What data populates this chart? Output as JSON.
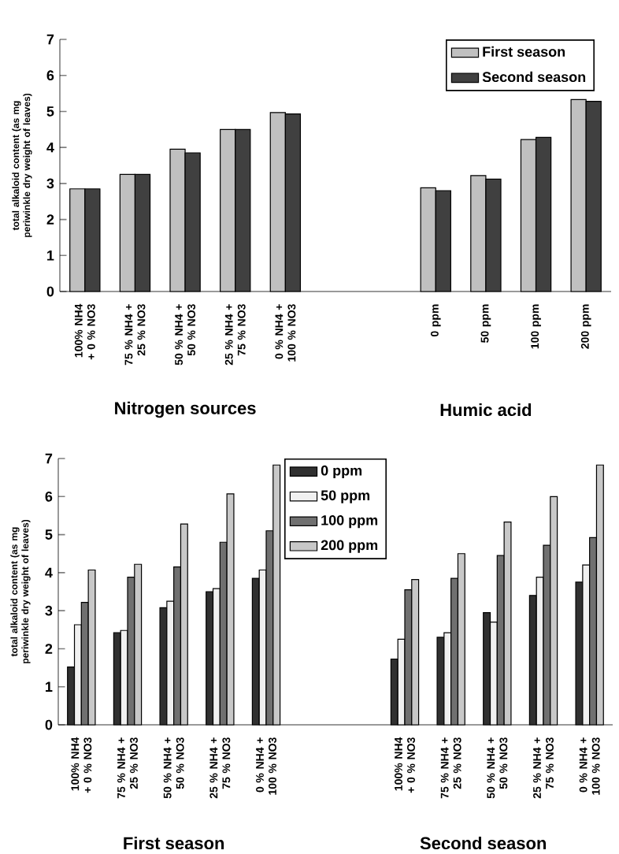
{
  "chart_data": [
    {
      "type": "bar",
      "ylabel": "total alkaloid content (as mg periwinkle dry weight of leaves)",
      "categories": [
        "100% NH4 + 0 % NO3",
        "75 % NH4 + 25 % NO3",
        "50 % NH4 + 50 % NO3",
        "25 % NH4 + 75 % NO3",
        "0 % NH4 + 100 % NO3",
        null,
        null,
        "0 ppm",
        "50 ppm",
        "100 ppm",
        "200 ppm"
      ],
      "series": [
        {
          "name": "First season",
          "color": "#c0c0c0",
          "values": [
            2.85,
            3.25,
            3.95,
            4.5,
            4.97,
            null,
            null,
            2.88,
            3.22,
            4.22,
            5.33
          ]
        },
        {
          "name": "Second season",
          "color": "#404040",
          "values": [
            2.85,
            3.25,
            3.85,
            4.5,
            4.93,
            null,
            null,
            2.8,
            3.12,
            4.28,
            5.28
          ]
        }
      ],
      "ylim": [
        0,
        7
      ],
      "yticks": [
        0,
        1,
        2,
        3,
        4,
        5,
        6,
        7
      ],
      "grid": false,
      "legend": "top right",
      "annotations": [
        "Nitrogen sources",
        "Humic acid"
      ]
    },
    {
      "type": "bar",
      "ylabel": "total alkaloid content (as mg periwinkle dry weight of leaves)",
      "categories": [
        "100% NH4 + 0 % NO3",
        "75 % NH4 + 25 % NO3",
        "50 % NH4 + 50 % NO3",
        "25 % NH4 + 75 % NO3",
        "0 % NH4 + 100 % NO3",
        null,
        null,
        "100% NH4 + 0 % NO3",
        "75 % NH4 + 25 % NO3",
        "50 % NH4 + 50 % NO3",
        "25 % NH4 + 75 % NO3",
        "0 % NH4 + 100 % NO3"
      ],
      "series": [
        {
          "name": "0 ppm",
          "color": "#303030",
          "values": [
            1.52,
            2.42,
            3.08,
            3.5,
            3.85,
            null,
            null,
            1.73,
            2.3,
            2.95,
            3.4,
            3.75
          ]
        },
        {
          "name": "50 ppm",
          "color": "#f0f0f0",
          "values": [
            2.63,
            2.48,
            3.25,
            3.58,
            4.07,
            null,
            null,
            2.25,
            2.42,
            2.7,
            3.88,
            4.2
          ]
        },
        {
          "name": "100 ppm",
          "color": "#707070",
          "values": [
            3.22,
            3.88,
            4.15,
            4.8,
            5.1,
            null,
            null,
            3.55,
            3.85,
            4.45,
            4.72,
            4.92
          ]
        },
        {
          "name": "200 ppm",
          "color": "#c8c8c8",
          "values": [
            4.07,
            4.22,
            5.28,
            6.07,
            6.83,
            null,
            null,
            3.82,
            4.5,
            5.33,
            6.0,
            6.83
          ]
        }
      ],
      "ylim": [
        0,
        7
      ],
      "yticks": [
        0,
        1,
        2,
        3,
        4,
        5,
        6,
        7
      ],
      "grid": false,
      "legend": "top",
      "annotations": [
        "First season",
        "Second season"
      ]
    }
  ]
}
